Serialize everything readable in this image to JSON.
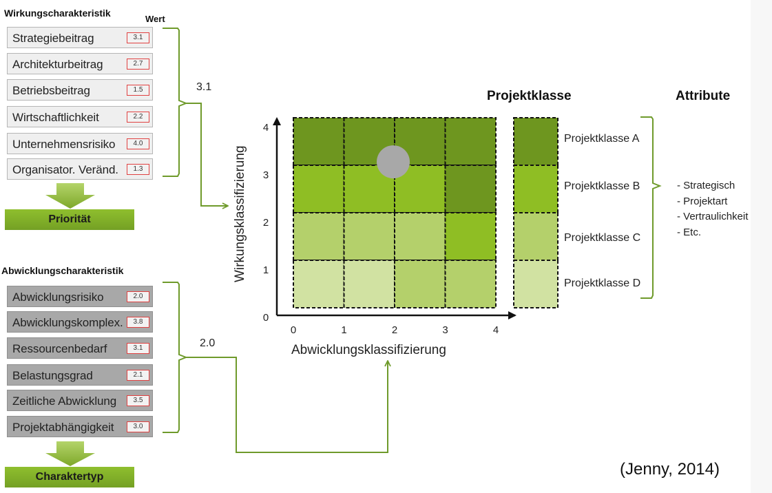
{
  "wirkung": {
    "title": "Wirkungscharakteristik",
    "wert_header": "Wert",
    "items": [
      {
        "label": "Strategiebeitrag",
        "value": "3.1"
      },
      {
        "label": "Architekturbeitrag",
        "value": "2.7"
      },
      {
        "label": "Betriebsbeitrag",
        "value": "1.5"
      },
      {
        "label": "Wirtschaftlichkeit",
        "value": "2.2"
      },
      {
        "label": "Unternehmensrisiko",
        "value": "4.0"
      },
      {
        "label": "Organisator. Veränd.",
        "value": "1.3"
      }
    ],
    "result_label": "Priorität",
    "summary_value": "3.1"
  },
  "abwicklung": {
    "title": "Abwicklungscharakteristik",
    "items": [
      {
        "label": "Abwicklungsrisiko",
        "value": "2.0"
      },
      {
        "label": "Abwicklungskomplex.",
        "value": "3.8"
      },
      {
        "label": "Ressourcenbedarf",
        "value": "3.1"
      },
      {
        "label": "Belastungsgrad",
        "value": "2.1"
      },
      {
        "label": "Zeitliche Abwicklung",
        "value": "3.5"
      },
      {
        "label": "Projektabhängigkeit",
        "value": "3.0"
      }
    ],
    "result_label": "Charaktertyp",
    "summary_value": "2.0"
  },
  "matrix": {
    "x_axis_label": "Abwicklungsklassifizierung",
    "y_axis_label": "Wirkungsklassifizierung",
    "x_ticks": [
      "0",
      "1",
      "2",
      "3",
      "4"
    ],
    "y_ticks": [
      "0",
      "1",
      "2",
      "3",
      "4"
    ],
    "rows_top_to_bottom": [
      [
        "A",
        "A",
        "A",
        "A"
      ],
      [
        "B",
        "B",
        "B",
        "A"
      ],
      [
        "C",
        "C",
        "C",
        "B"
      ],
      [
        "D",
        "D",
        "C",
        "C"
      ]
    ],
    "marker": {
      "x": 2.0,
      "y": 3.1
    }
  },
  "classes": {
    "heading": "Projektklasse",
    "colors": {
      "A": "#6e961f",
      "B": "#8fbe24",
      "C": "#b4d06b",
      "D": "#d1e2a2"
    },
    "items": [
      {
        "key": "A",
        "label": "Projektklasse A"
      },
      {
        "key": "B",
        "label": "Projektklasse B"
      },
      {
        "key": "C",
        "label": "Projektklasse C"
      },
      {
        "key": "D",
        "label": "Projektklasse D"
      }
    ]
  },
  "attributes": {
    "heading": "Attribute",
    "items": [
      "- Strategisch",
      "- Projektart",
      "- Vertraulichkeit",
      "- Etc."
    ]
  },
  "colors": {
    "bracket": "#6e9a2a",
    "marker": "#a8a8a8"
  },
  "citation": "(Jenny,  2014)"
}
